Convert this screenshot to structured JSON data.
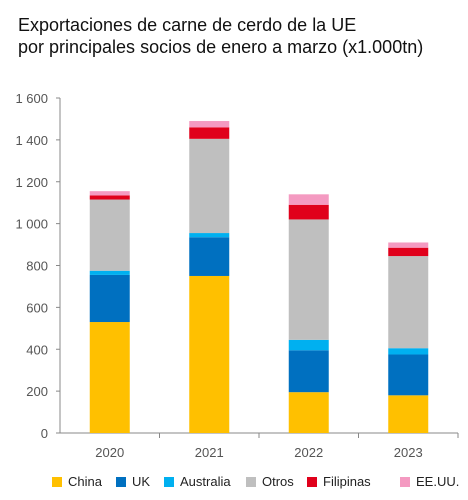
{
  "chart_data": {
    "type": "bar",
    "stacked": true,
    "title": "Exportaciones de carne de cerdo de la UE",
    "subtitle": "por principales socios de enero a marzo (x1.000tn)",
    "categories": [
      "2020",
      "2021",
      "2022",
      "2023"
    ],
    "ylim": [
      0,
      1600
    ],
    "yticks": [
      0,
      200,
      400,
      600,
      800,
      1000,
      1200,
      1400,
      1600
    ],
    "ytick_labels": [
      "0",
      "200",
      "400",
      "600",
      "800",
      "1 000",
      "1 200",
      "1 400",
      "1 600"
    ],
    "grid": false,
    "legend_position": "bottom",
    "series": [
      {
        "name": "China",
        "color": "#FFC000",
        "values": [
          530,
          750,
          195,
          180
        ]
      },
      {
        "name": "UK",
        "color": "#0070C0",
        "values": [
          225,
          185,
          200,
          195
        ]
      },
      {
        "name": "Australia",
        "color": "#00B0F0",
        "values": [
          20,
          20,
          50,
          30
        ]
      },
      {
        "name": "Otros",
        "color": "#BFBFBF",
        "values": [
          340,
          450,
          575,
          440
        ]
      },
      {
        "name": "Filipinas",
        "color": "#E0001B",
        "values": [
          20,
          55,
          70,
          40
        ]
      },
      {
        "name": "EE.UU.",
        "color": "#F49AC1",
        "values": [
          20,
          30,
          50,
          25
        ]
      }
    ]
  }
}
